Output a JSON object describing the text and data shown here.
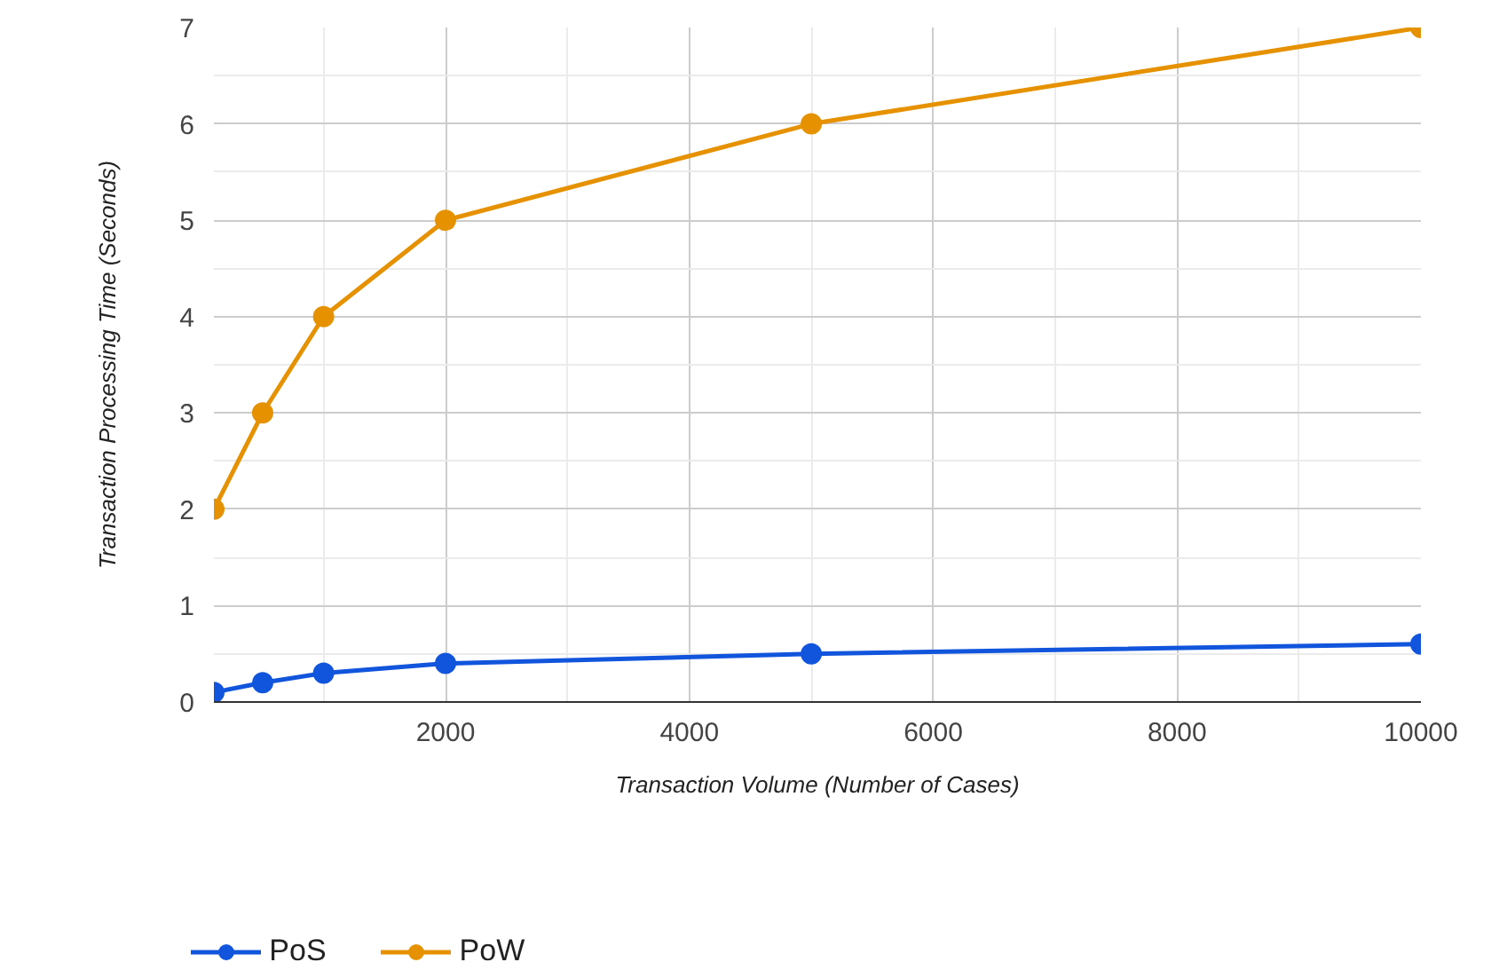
{
  "chart_data": {
    "type": "line",
    "xlabel": "Transaction Volume (Number of Cases)",
    "ylabel": "Transaction Processing Time (Seconds)",
    "x": [
      100,
      500,
      1000,
      2000,
      5000,
      10000
    ],
    "series": [
      {
        "name": "PoS",
        "color": "#1155dd",
        "values": [
          0.1,
          0.2,
          0.3,
          0.4,
          0.5,
          0.6
        ]
      },
      {
        "name": "PoW",
        "color": "#e69200",
        "values": [
          2,
          3,
          4,
          5,
          6,
          7
        ]
      }
    ],
    "xlim": [
      100,
      10000
    ],
    "ylim": [
      0,
      7
    ],
    "xticks": [
      {
        "value": 1000,
        "label": null
      },
      2000,
      {
        "value": 3000,
        "label": null
      },
      4000,
      {
        "value": 5000,
        "label": null
      },
      6000,
      {
        "value": 7000,
        "label": null
      },
      8000,
      {
        "value": 9000,
        "label": null
      },
      10000
    ],
    "yticks": [
      0,
      {
        "value": 0.5,
        "label": null
      },
      1,
      {
        "value": 1.5,
        "label": null
      },
      2,
      {
        "value": 2.5,
        "label": null
      },
      3,
      {
        "value": 3.5,
        "label": null
      },
      4,
      {
        "value": 4.5,
        "label": null
      },
      5,
      {
        "value": 5.5,
        "label": null
      },
      6,
      {
        "value": 6.5,
        "label": null
      },
      7
    ],
    "grid": true,
    "legend": "bottom left",
    "marker": "circle",
    "line_style": "solid"
  }
}
